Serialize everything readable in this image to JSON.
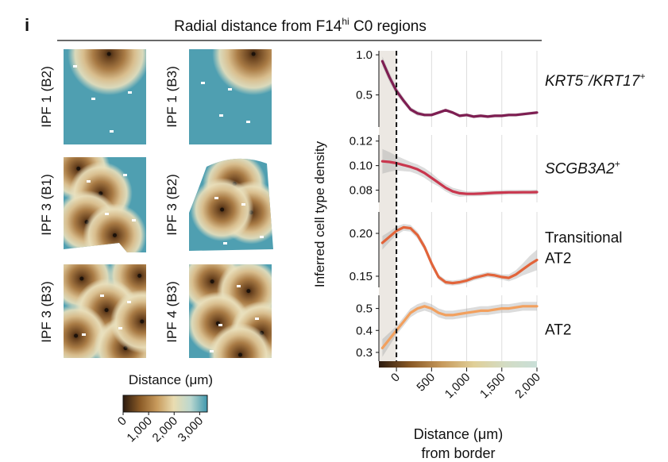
{
  "figure": {
    "panel_letter": "i",
    "title_prefix": "Radial distance from F14",
    "title_sup": "hi",
    "title_suffix": " C0 regions"
  },
  "maps": [
    {
      "label": "IPF 1 (B2)",
      "centers": [
        [
          0.55,
          0.05
        ]
      ],
      "shape": "square",
      "cut": "none"
    },
    {
      "label": "IPF 1 (B3)",
      "centers": [
        [
          0.78,
          0.05
        ]
      ],
      "shape": "square",
      "cut": "none"
    },
    {
      "label": "IPF 3 (B1)",
      "centers": [
        [
          0.18,
          0.12
        ],
        [
          0.45,
          0.38
        ],
        [
          0.28,
          0.68
        ],
        [
          0.62,
          0.82
        ]
      ],
      "shape": "square",
      "cut": "right"
    },
    {
      "label": "IPF 3 (B2)",
      "centers": [
        [
          0.55,
          0.28
        ],
        [
          0.75,
          0.58
        ],
        [
          0.4,
          0.55
        ]
      ],
      "shape": "blob",
      "cut": "left"
    },
    {
      "label": "IPF 3 (B3)",
      "centers": [
        [
          0.22,
          0.15
        ],
        [
          0.92,
          0.12
        ],
        [
          0.52,
          0.48
        ],
        [
          0.15,
          0.75
        ],
        [
          0.75,
          0.88
        ],
        [
          0.95,
          0.6
        ]
      ],
      "shape": "square",
      "cut": "none"
    },
    {
      "label": "IPF 4 (B3)",
      "centers": [
        [
          0.28,
          0.18
        ],
        [
          0.72,
          0.28
        ],
        [
          0.35,
          0.62
        ],
        [
          0.88,
          0.72
        ],
        [
          0.62,
          0.95
        ]
      ],
      "shape": "square",
      "cut": "none"
    }
  ],
  "colorbar": {
    "title": "Distance (μm)",
    "ticks": [
      "0",
      "1,000",
      "2,000",
      "3,000"
    ],
    "tick_values": [
      0,
      1000,
      2000,
      3000
    ],
    "range": [
      0,
      3300
    ],
    "colors": [
      "#2b1a0f",
      "#8a5a26",
      "#c79a5c",
      "#e9dcb0",
      "#bcd8cf",
      "#3f97ad"
    ]
  },
  "chart_data": {
    "type": "line",
    "ylabel": "Inferred cell type density",
    "xlabel_line1": "Distance (μm)",
    "xlabel_line2": "from border",
    "x_ticks": [
      0,
      500,
      1000,
      1500,
      2000
    ],
    "x_tick_labels": [
      "0",
      "500",
      "1,000",
      "1,500",
      "2,000"
    ],
    "xlim": [
      -250,
      2000
    ],
    "border_x": 0,
    "grid": true,
    "x": [
      -200,
      -100,
      0,
      100,
      200,
      300,
      400,
      500,
      600,
      700,
      800,
      900,
      1000,
      1100,
      1200,
      1300,
      1400,
      1500,
      1600,
      1700,
      1800,
      1900,
      2000
    ],
    "series": [
      {
        "name": "KRT5-/KRT17+",
        "label_main": "KRT5",
        "label_sup1": "−",
        "label_mid": "/KRT17",
        "label_sup2": "+",
        "label_lines": [],
        "italic": true,
        "color": "#7e1e52",
        "ylim": [
          0.1,
          1.05
        ],
        "ticks": [
          0.5,
          1.0
        ],
        "tick_labels": [
          "0.5",
          "1.0"
        ],
        "values": [
          0.92,
          0.72,
          0.55,
          0.43,
          0.32,
          0.27,
          0.25,
          0.25,
          0.28,
          0.31,
          0.28,
          0.24,
          0.25,
          0.23,
          0.24,
          0.23,
          0.24,
          0.24,
          0.25,
          0.25,
          0.26,
          0.27,
          0.28
        ],
        "band": [
          0.06,
          0.06,
          0.05,
          0.04,
          0.03,
          0.03,
          0.02,
          0.02,
          0.02,
          0.02,
          0.02,
          0.02,
          0.02,
          0.02,
          0.02,
          0.02,
          0.02,
          0.02,
          0.02,
          0.02,
          0.02,
          0.02,
          0.02
        ]
      },
      {
        "name": "SCGB3A2+",
        "label_main": "SCGB3A2",
        "label_sup1": "+",
        "label_mid": "",
        "label_sup2": "",
        "label_lines": [],
        "italic": true,
        "color": "#c9374e",
        "ylim": [
          0.07,
          0.125
        ],
        "ticks": [
          0.08,
          0.1,
          0.12
        ],
        "tick_labels": [
          "0.08",
          "0.10",
          "0.12"
        ],
        "values": [
          0.1035,
          0.103,
          0.102,
          0.1005,
          0.099,
          0.097,
          0.094,
          0.09,
          0.086,
          0.082,
          0.079,
          0.0775,
          0.077,
          0.077,
          0.0772,
          0.0775,
          0.0778,
          0.078,
          0.0782,
          0.0782,
          0.0783,
          0.0783,
          0.0784
        ],
        "band": [
          0.01,
          0.008,
          0.006,
          0.005,
          0.004,
          0.004,
          0.004,
          0.004,
          0.003,
          0.003,
          0.003,
          0.003,
          0.002,
          0.002,
          0.002,
          0.002,
          0.002,
          0.002,
          0.002,
          0.002,
          0.002,
          0.002,
          0.002
        ]
      },
      {
        "name": "Transitional AT2",
        "label_main": "",
        "label_sup1": "",
        "label_mid": "",
        "label_sup2": "",
        "label_lines": [
          "Transitional",
          "AT2"
        ],
        "italic": false,
        "color": "#e2643a",
        "ylim": [
          0.137,
          0.225
        ],
        "ticks": [
          0.15,
          0.2
        ],
        "tick_labels": [
          "0.15",
          "0.20"
        ],
        "values": [
          0.189,
          0.196,
          0.203,
          0.207,
          0.206,
          0.198,
          0.184,
          0.165,
          0.149,
          0.143,
          0.142,
          0.143,
          0.145,
          0.148,
          0.15,
          0.152,
          0.151,
          0.149,
          0.148,
          0.152,
          0.158,
          0.164,
          0.169
        ],
        "band": [
          0.008,
          0.006,
          0.005,
          0.004,
          0.004,
          0.004,
          0.004,
          0.004,
          0.003,
          0.003,
          0.003,
          0.003,
          0.003,
          0.003,
          0.003,
          0.003,
          0.003,
          0.003,
          0.004,
          0.005,
          0.007,
          0.01,
          0.012
        ]
      },
      {
        "name": "AT2",
        "label_main": "",
        "label_sup1": "",
        "label_mid": "",
        "label_sup2": "",
        "label_lines": [
          "AT2"
        ],
        "italic": false,
        "color": "#f2a05e",
        "ylim": [
          0.26,
          0.56
        ],
        "ticks": [
          0.3,
          0.4,
          0.5
        ],
        "tick_labels": [
          "0.3",
          "0.4",
          "0.5"
        ],
        "values": [
          0.32,
          0.36,
          0.4,
          0.44,
          0.48,
          0.5,
          0.51,
          0.5,
          0.48,
          0.47,
          0.47,
          0.475,
          0.48,
          0.485,
          0.49,
          0.49,
          0.495,
          0.5,
          0.5,
          0.505,
          0.51,
          0.51,
          0.51
        ],
        "band": [
          0.04,
          0.03,
          0.02,
          0.02,
          0.02,
          0.02,
          0.02,
          0.02,
          0.02,
          0.02,
          0.02,
          0.02,
          0.02,
          0.02,
          0.02,
          0.02,
          0.02,
          0.02,
          0.02,
          0.02,
          0.02,
          0.02,
          0.02
        ]
      }
    ],
    "distance_bar": {
      "colors": [
        "#2b1a0f",
        "#8a5a26",
        "#c79a5c",
        "#e0cf98",
        "#d3dcc4",
        "#c9dfd8"
      ]
    }
  }
}
